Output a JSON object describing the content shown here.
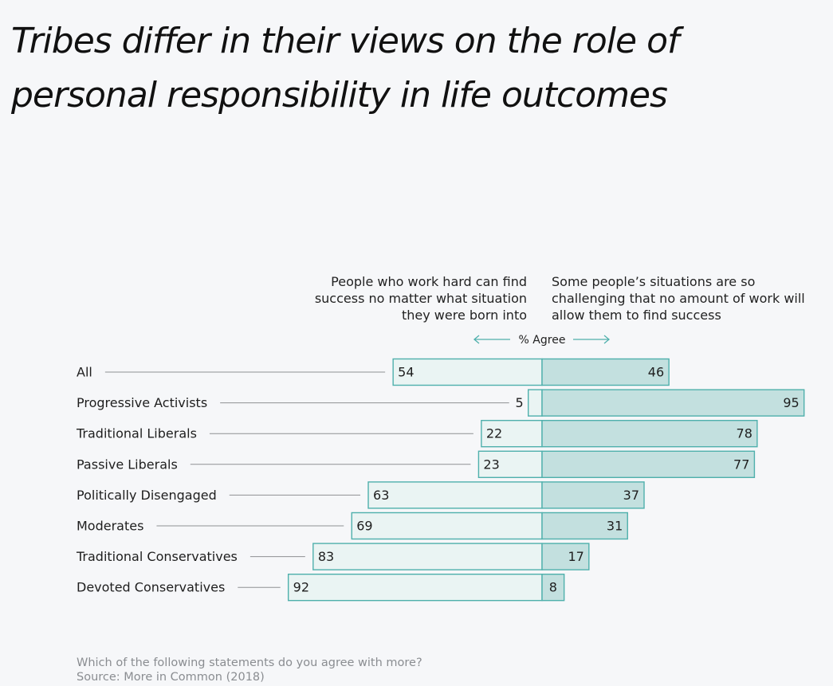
{
  "title": "Tribes differ in their views on the role of personal responsibility in life outcomes",
  "colors": {
    "left_fill": "#eaf4f3",
    "right_fill": "#c3e0df",
    "bar_stroke": "#4fb0ac",
    "leader_line": "#8e9093",
    "arrow": "#4fb0ac"
  },
  "footer": {
    "question": "Which of the following statements do you agree with more?",
    "source": "Source: More in Common (2018)"
  },
  "chart_data": {
    "type": "bar",
    "orientation": "horizontal-diverging",
    "left_header": "People who work hard can find success no matter what situation they were born into",
    "right_header": "Some people’s situations are so challenging that no amount of work will allow them to find success",
    "axis_label": "% Agree",
    "categories": [
      "All",
      "Progressive Activists",
      "Traditional Liberals",
      "Passive Liberals",
      "Politically Disengaged",
      "Moderates",
      "Traditional Conservatives",
      "Devoted Conservatives"
    ],
    "series": [
      {
        "values": [
          54,
          5,
          22,
          23,
          63,
          69,
          83,
          92
        ]
      },
      {
        "values": [
          46,
          95,
          78,
          77,
          37,
          31,
          17,
          8
        ]
      }
    ],
    "xlim": [
      0,
      100
    ],
    "grid": false,
    "legend": "none"
  }
}
